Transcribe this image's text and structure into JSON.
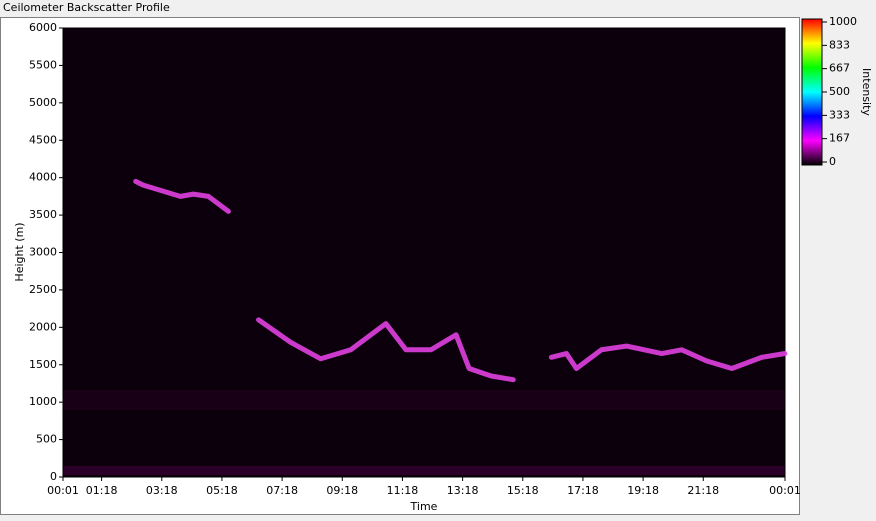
{
  "chart_data": {
    "type": "heatmap",
    "title": "Ceilometer Backscatter Profile",
    "xlabel": "Time",
    "ylabel": "Height (m)",
    "colorbar_label": "Intensity",
    "x": [
      145,
      160,
      234,
      260,
      290,
      330,
      330,
      390,
      454,
      514,
      574,
      644,
      684,
      734,
      784,
      810,
      854,
      898,
      914,
      974,
      1004,
      1024,
      1074,
      1124,
      1194,
      1234,
      1284,
      1334,
      1394,
      1440
    ],
    "values": [
      3950,
      3900,
      3750,
      3780,
      3750,
      3550,
      null,
      2100,
      1800,
      1580,
      1700,
      2050,
      1700,
      1700,
      1900,
      1450,
      1350,
      1300,
      null,
      1600,
      1650,
      1450,
      1700,
      1750,
      1650,
      1700,
      1550,
      1450,
      1600,
      1650
    ],
    "color": "#e040e0",
    "xlim": [
      0,
      1440
    ],
    "xticks": [
      {
        "value": 0,
        "label": "00:01"
      },
      {
        "value": 77,
        "label": "01:18"
      },
      {
        "value": 197,
        "label": "03:18"
      },
      {
        "value": 317,
        "label": "05:18"
      },
      {
        "value": 437,
        "label": "07:18"
      },
      {
        "value": 557,
        "label": "09:18"
      },
      {
        "value": 677,
        "label": "11:18"
      },
      {
        "value": 797,
        "label": "13:18"
      },
      {
        "value": 917,
        "label": "15:18"
      },
      {
        "value": 1037,
        "label": "17:18"
      },
      {
        "value": 1157,
        "label": "19:18"
      },
      {
        "value": 1277,
        "label": "21:18"
      },
      {
        "value": 1440,
        "label": "00:01"
      }
    ],
    "ylim": [
      0,
      6000
    ],
    "yticks": [
      0,
      500,
      1000,
      1500,
      2000,
      2500,
      3000,
      3500,
      4000,
      4500,
      5000,
      5500,
      6000
    ],
    "clim": [
      0,
      1000
    ],
    "cticks": [
      0,
      167,
      333,
      500,
      667,
      833,
      1000
    ],
    "colormap": [
      "#000000",
      "#ff00ff",
      "#0000ff",
      "#00ffff",
      "#00ff00",
      "#ffff00",
      "#ff0000"
    ]
  }
}
